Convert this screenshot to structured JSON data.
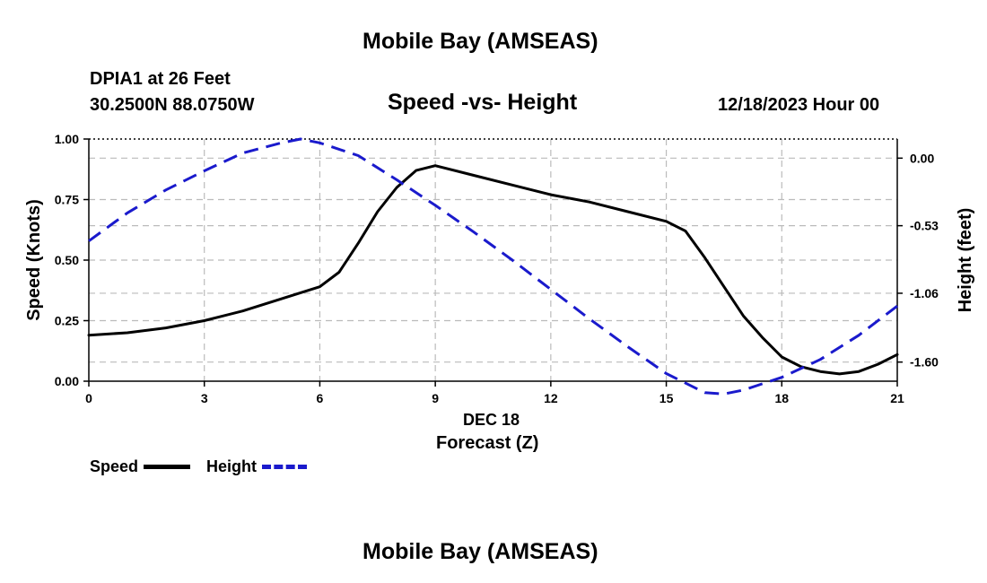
{
  "header": {
    "title_top": "Mobile Bay (AMSEAS)",
    "station": "DPIA1 at 26 Feet",
    "coords": "30.2500N  88.0750W",
    "chart_title": "Speed -vs- Height",
    "datetime": "12/18/2023 Hour 00",
    "title_bottom": "Mobile Bay (AMSEAS)"
  },
  "legend": {
    "speed_label": "Speed",
    "height_label": "Height"
  },
  "colors": {
    "speed": "#000000",
    "height": "#1a1acc",
    "grid": "#bbbbbb"
  },
  "chart_data": {
    "type": "line",
    "title": "Speed -vs- Height",
    "xlabel": "Forecast (Z)",
    "xlabel_date": "DEC 18",
    "ylabel": "Speed (Knots)",
    "y2label": "Height (feet)",
    "xlim": [
      0,
      21
    ],
    "ylim": [
      0,
      1
    ],
    "y2lim": [
      -1.75,
      0.15
    ],
    "x_ticks": [
      0,
      3,
      6,
      9,
      12,
      15,
      18,
      21
    ],
    "x_tick_labels": [
      "0",
      "3",
      "6",
      "9",
      "12",
      "15",
      "18",
      "21"
    ],
    "y_ticks": [
      0,
      0.25,
      0.5,
      0.75,
      1.0
    ],
    "y_tick_labels": [
      "0.00",
      "0.25",
      "0.50",
      "0.75",
      "1.00"
    ],
    "y2_ticks": [
      0.0,
      -0.53,
      -1.06,
      -1.6
    ],
    "y2_tick_labels": [
      "0.00",
      "-0.53",
      "-1.06",
      "-1.60"
    ],
    "grid": true,
    "series": [
      {
        "name": "Speed",
        "axis": "left",
        "style": "solid",
        "x": [
          0,
          1,
          2,
          3,
          4,
          5,
          6,
          6.5,
          7,
          7.5,
          8,
          8.5,
          9,
          10,
          11,
          12,
          13,
          14,
          15,
          15.5,
          16,
          16.5,
          17,
          17.5,
          18,
          18.5,
          19,
          19.5,
          20,
          20.5,
          21
        ],
        "values": [
          0.19,
          0.2,
          0.22,
          0.25,
          0.29,
          0.34,
          0.39,
          0.45,
          0.57,
          0.7,
          0.8,
          0.87,
          0.89,
          0.85,
          0.81,
          0.77,
          0.74,
          0.7,
          0.66,
          0.62,
          0.51,
          0.39,
          0.27,
          0.18,
          0.1,
          0.06,
          0.04,
          0.03,
          0.04,
          0.07,
          0.11
        ]
      },
      {
        "name": "Height",
        "axis": "right",
        "style": "dashed",
        "x": [
          0,
          1,
          2,
          3,
          4,
          5,
          5.5,
          6,
          7,
          8,
          9,
          10,
          11,
          12,
          13,
          14,
          15,
          16,
          16.5,
          17,
          18,
          19,
          20,
          21
        ],
        "values": [
          -0.65,
          -0.43,
          -0.25,
          -0.1,
          0.04,
          0.12,
          0.15,
          0.12,
          0.02,
          -0.17,
          -0.37,
          -0.58,
          -0.8,
          -1.03,
          -1.26,
          -1.48,
          -1.69,
          -1.84,
          -1.85,
          -1.82,
          -1.72,
          -1.58,
          -1.39,
          -1.16
        ]
      }
    ]
  }
}
